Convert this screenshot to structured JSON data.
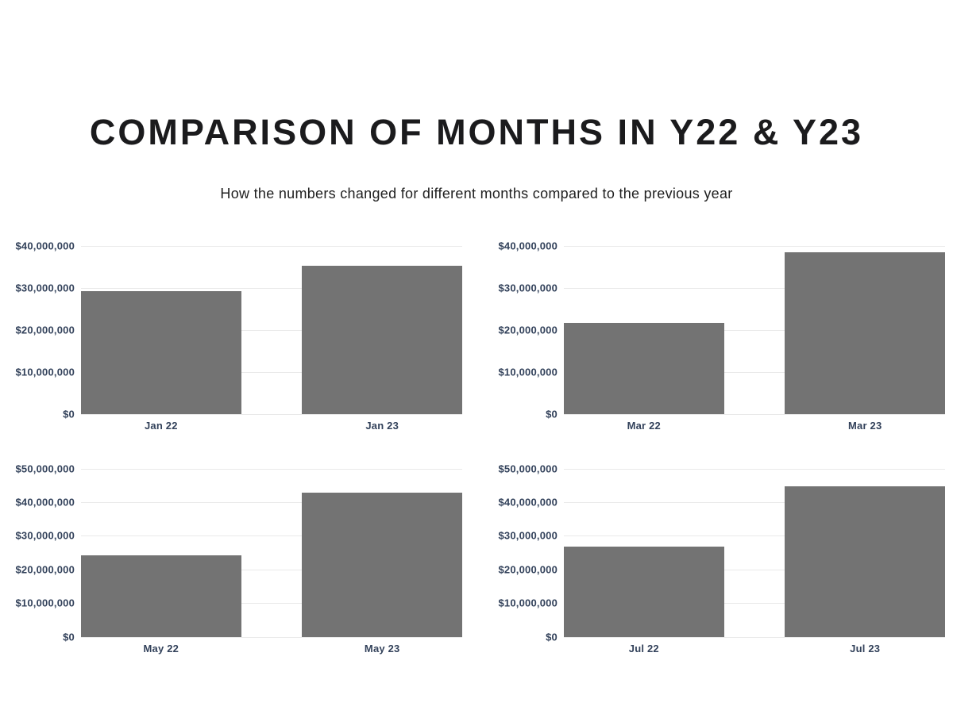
{
  "page": {
    "title": "COMPARISON OF MONTHS IN Y22 & Y23",
    "subtitle": "How the numbers changed for different months compared to the previous year"
  },
  "colors": {
    "bar": "#737373",
    "axis_text": "#33425b",
    "gridline": "#e9e9e9",
    "title_text": "#1b1b1d"
  },
  "chart_data": [
    {
      "type": "bar",
      "name": "january-comparison",
      "categories": [
        "Jan 22",
        "Jan 23"
      ],
      "values": [
        29200000,
        35200000
      ],
      "ylim": [
        0,
        40000000
      ],
      "ytick_step": 10000000,
      "ytick_labels": [
        "$0",
        "$10,000,000",
        "$20,000,000",
        "$30,000,000",
        "$40,000,000"
      ],
      "grid": true,
      "legend": "none",
      "bar_color": "#737373"
    },
    {
      "type": "bar",
      "name": "march-comparison",
      "categories": [
        "Mar 22",
        "Mar 23"
      ],
      "values": [
        21600000,
        38400000
      ],
      "ylim": [
        0,
        40000000
      ],
      "ytick_step": 10000000,
      "ytick_labels": [
        "$0",
        "$10,000,000",
        "$20,000,000",
        "$30,000,000",
        "$40,000,000"
      ],
      "grid": true,
      "legend": "none",
      "bar_color": "#737373"
    },
    {
      "type": "bar",
      "name": "may-comparison",
      "categories": [
        "May 22",
        "May 23"
      ],
      "values": [
        24100000,
        42700000
      ],
      "ylim": [
        0,
        50000000
      ],
      "ytick_step": 10000000,
      "ytick_labels": [
        "$0",
        "$10,000,000",
        "$20,000,000",
        "$30,000,000",
        "$40,000,000",
        "$50,000,000"
      ],
      "grid": true,
      "legend": "none",
      "bar_color": "#737373"
    },
    {
      "type": "bar",
      "name": "july-comparison",
      "categories": [
        "Jul 22",
        "Jul 23"
      ],
      "values": [
        26700000,
        44700000
      ],
      "ylim": [
        0,
        50000000
      ],
      "ytick_step": 10000000,
      "ytick_labels": [
        "$0",
        "$10,000,000",
        "$20,000,000",
        "$30,000,000",
        "$40,000,000",
        "$50,000,000"
      ],
      "grid": true,
      "legend": "none",
      "bar_color": "#737373"
    }
  ]
}
